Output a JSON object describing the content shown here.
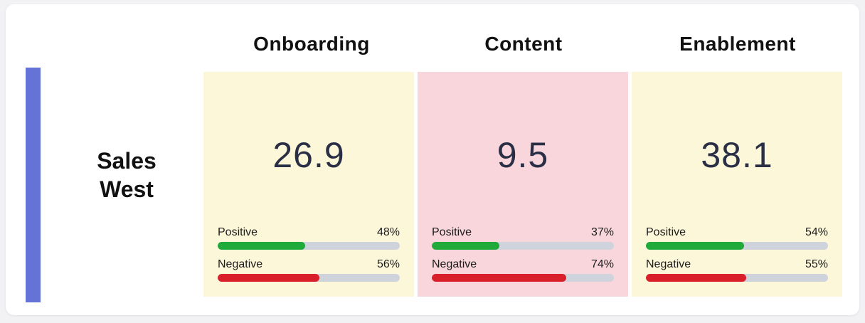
{
  "columns": [
    "Onboarding",
    "Content",
    "Enablement"
  ],
  "row_label": "Sales\nWest",
  "row_label_lines": [
    "Sales",
    "West"
  ],
  "colors": {
    "accent_bar": "#6673d6",
    "positive": "#1faa3a",
    "negative": "#d91f2a",
    "track": "#cfd3db",
    "tile_neutral": "#fcf7d9",
    "tile_alert": "#f8d6dc"
  },
  "tiles": [
    {
      "name": "Onboarding",
      "score": "26.9",
      "status": "neutral",
      "positive": {
        "label": "Positive",
        "value": "48%",
        "fraction": 0.48
      },
      "negative": {
        "label": "Negative",
        "value": "56%",
        "fraction": 0.56
      }
    },
    {
      "name": "Content",
      "score": "9.5",
      "status": "alert",
      "positive": {
        "label": "Positive",
        "value": "37%",
        "fraction": 0.37
      },
      "negative": {
        "label": "Negative",
        "value": "74%",
        "fraction": 0.74
      }
    },
    {
      "name": "Enablement",
      "score": "38.1",
      "status": "neutral",
      "positive": {
        "label": "Positive",
        "value": "54%",
        "fraction": 0.54
      },
      "negative": {
        "label": "Negative",
        "value": "55%",
        "fraction": 0.55
      }
    }
  ]
}
